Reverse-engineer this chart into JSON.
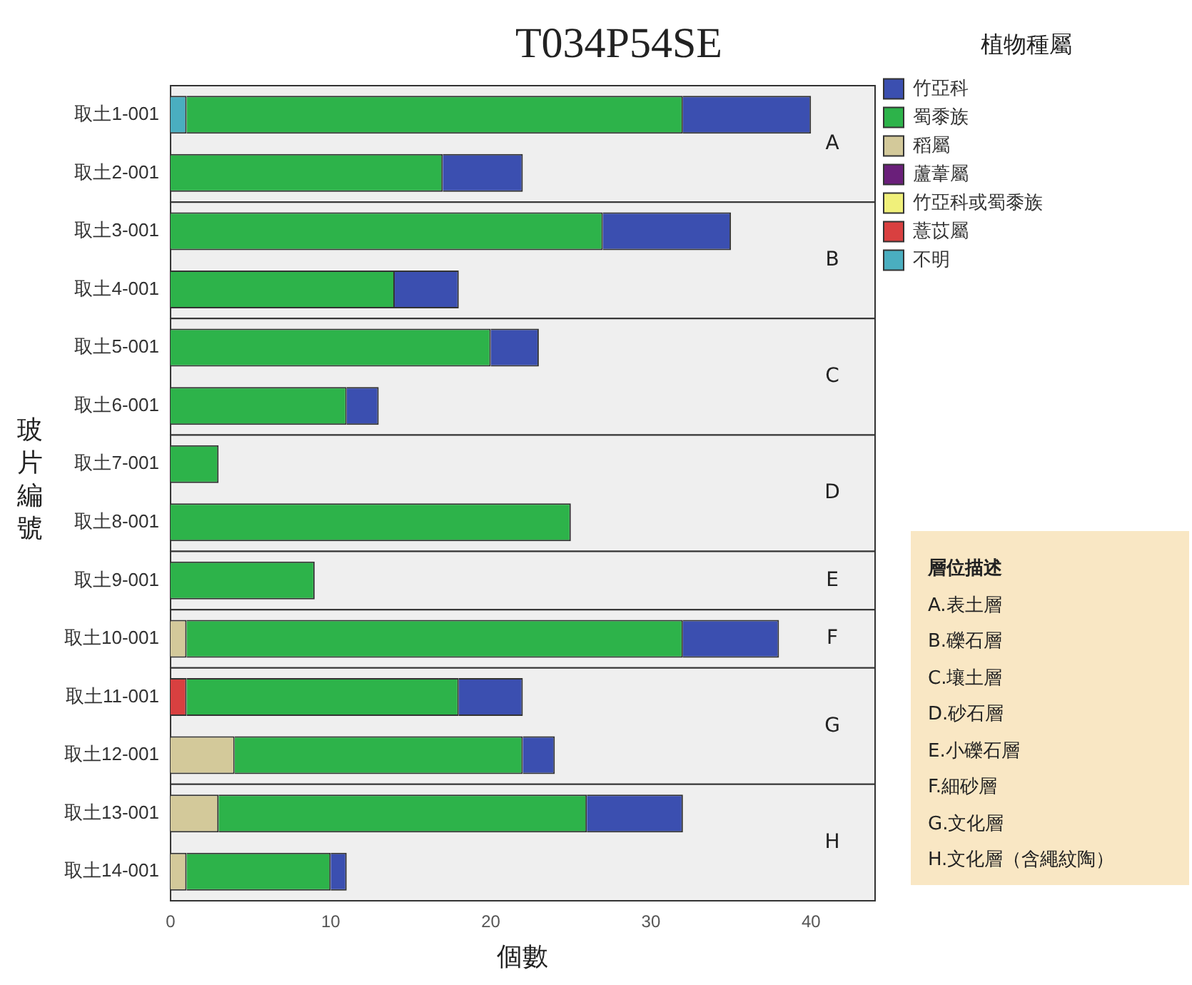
{
  "chart_data": {
    "type": "bar",
    "orientation": "horizontal",
    "stacked": true,
    "title": "T034P54SE",
    "xlabel": "個數",
    "ylabel": "玻片編號",
    "legend_title": "植物種屬",
    "legend": "top right",
    "categories": [
      "取土1-001",
      "取土2-001",
      "取土3-001",
      "取土4-001",
      "取土5-001",
      "取土6-001",
      "取土7-001",
      "取土8-001",
      "取土9-001",
      "取土10-001",
      "取土11-001",
      "取土12-001",
      "取土13-001",
      "取土14-001"
    ],
    "series": [
      {
        "name": "不明",
        "color": "#4aaec0",
        "values": [
          1,
          0,
          0,
          0,
          0,
          0,
          0,
          0,
          0,
          0,
          0,
          0,
          0,
          0
        ]
      },
      {
        "name": "薏苡屬",
        "color": "#d94040",
        "values": [
          0,
          0,
          0,
          0,
          0,
          0,
          0,
          0,
          0,
          0,
          1,
          0,
          0,
          0
        ]
      },
      {
        "name": "竹亞科或蜀黍族",
        "color": "#f0f07a",
        "values": [
          0,
          0,
          0,
          0,
          0,
          0,
          0,
          0,
          0,
          0,
          0,
          0,
          0,
          0
        ]
      },
      {
        "name": "蘆葦屬",
        "color": "#6a1f7a",
        "values": [
          0,
          0,
          0,
          0,
          0,
          0,
          0,
          0,
          0,
          0,
          0,
          0,
          0,
          0
        ]
      },
      {
        "name": "稻屬",
        "color": "#d3c99a",
        "values": [
          0,
          0,
          0,
          0,
          0,
          0,
          0,
          0,
          0,
          1,
          0,
          4,
          3,
          1
        ]
      },
      {
        "name": "蜀黍族",
        "color": "#2db34a",
        "values": [
          31,
          17,
          27,
          14,
          20,
          11,
          3,
          25,
          9,
          31,
          17,
          18,
          23,
          9
        ]
      },
      {
        "name": "竹亞科",
        "color": "#3b4fb0",
        "values": [
          8,
          5,
          8,
          4,
          3,
          2,
          0,
          0,
          0,
          6,
          4,
          2,
          6,
          1
        ]
      }
    ],
    "xlim": [
      0,
      44
    ],
    "xticks": [
      0,
      10,
      20,
      30,
      40
    ],
    "grid": false,
    "bands": [
      {
        "axis": "y",
        "from": "取土1-001",
        "to": "取土2-001",
        "label": "A",
        "color": "#efefef"
      },
      {
        "axis": "y",
        "from": "取土3-001",
        "to": "取土4-001",
        "label": "B",
        "color": "#efefef"
      },
      {
        "axis": "y",
        "from": "取土5-001",
        "to": "取土6-001",
        "label": "C",
        "color": "#efefef"
      },
      {
        "axis": "y",
        "from": "取土7-001",
        "to": "取土8-001",
        "label": "D",
        "color": "#efefef"
      },
      {
        "axis": "y",
        "from": "取土9-001",
        "to": "取土9-001",
        "label": "E",
        "color": "#efefef"
      },
      {
        "axis": "y",
        "from": "取土10-001",
        "to": "取土10-001",
        "label": "F",
        "color": "#efefef"
      },
      {
        "axis": "y",
        "from": "取土11-001",
        "to": "取土12-001",
        "label": "G",
        "color": "#efefef"
      },
      {
        "axis": "y",
        "from": "取土13-001",
        "to": "取土14-001",
        "label": "H",
        "color": "#efefef"
      }
    ],
    "annotations": [
      "層位描述",
      "A.表土層",
      "B.礫石層",
      "C.壤土層",
      "D.砂石層",
      "E.小礫石層",
      "F.細砂層",
      "G.文化層",
      "H.文化層（含繩紋陶）"
    ]
  }
}
